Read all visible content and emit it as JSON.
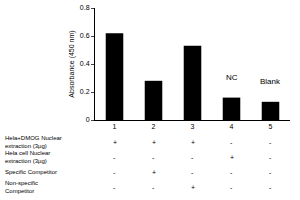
{
  "chart_data": {
    "type": "bar",
    "y_label": "Absorbance (450 nm)",
    "categories": [
      "1",
      "2",
      "3",
      "4",
      "5"
    ],
    "values": [
      0.62,
      0.28,
      0.53,
      0.16,
      0.13
    ],
    "color": "#000000",
    "ylim": [
      0,
      0.8
    ],
    "yticks": [
      0,
      0.2,
      0.4,
      0.6,
      0.8
    ],
    "grid": false,
    "annotations": [
      {
        "category_index": 3,
        "text": "NC"
      },
      {
        "category_index": 4,
        "text": "Blank"
      }
    ],
    "table": {
      "rows": [
        {
          "label": [
            "Hela+DMOG Nuclear",
            "extraction (3μg)"
          ],
          "cells": [
            "+",
            "+",
            "+",
            "-",
            "-"
          ]
        },
        {
          "label": [
            "Hela cell Nuclear",
            "extraction (3μg)"
          ],
          "cells": [
            "-",
            "-",
            "-",
            "+",
            "-"
          ]
        },
        {
          "label": [
            "Specific Competitor"
          ],
          "cells": [
            "-",
            "+",
            "-",
            "-",
            "-"
          ]
        },
        {
          "label": [
            "Non-specific",
            "Competitor"
          ],
          "cells": [
            "-",
            "-",
            "+",
            "-",
            "-"
          ]
        }
      ]
    }
  }
}
